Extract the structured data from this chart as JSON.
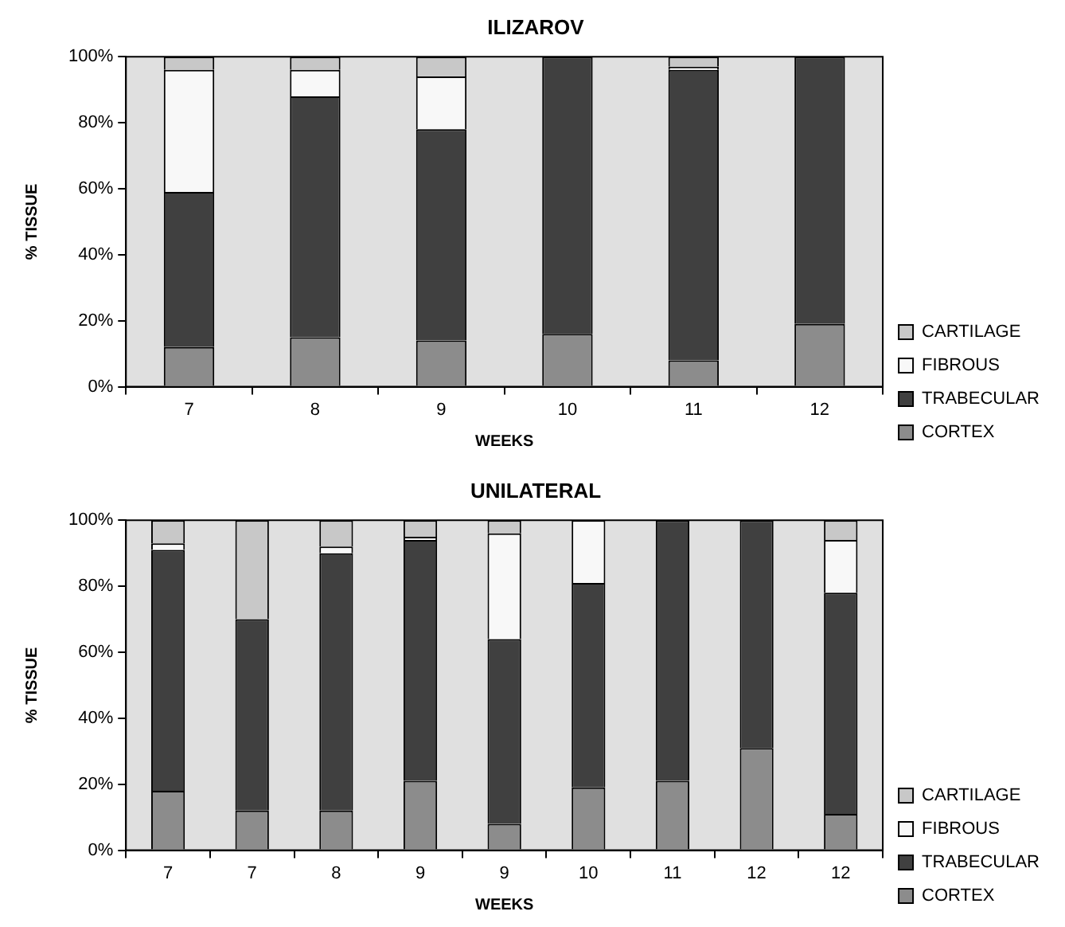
{
  "chart_data": [
    {
      "type": "bar",
      "stacked": true,
      "title": "ILIZAROV",
      "xlabel": "WEEKS",
      "ylabel": "% TISSUE",
      "categories": [
        "7",
        "8",
        "9",
        "10",
        "11",
        "12"
      ],
      "legend": "right",
      "grid": false,
      "ylim": [
        0,
        100
      ],
      "yticks": [
        {
          "value": 0,
          "label": "0%"
        },
        {
          "value": 20,
          "label": "20%"
        },
        {
          "value": 40,
          "label": "40%"
        },
        {
          "value": 60,
          "label": "60%"
        },
        {
          "value": 80,
          "label": "80%"
        },
        {
          "value": 100,
          "label": "100%"
        }
      ],
      "series": [
        {
          "name": "CORTEX",
          "color": "#8c8c8c",
          "values": [
            12,
            15,
            14,
            16,
            8,
            19
          ]
        },
        {
          "name": "TRABECULAR",
          "color": "#404040",
          "values": [
            47,
            73,
            64,
            84,
            88,
            81
          ]
        },
        {
          "name": "FIBROUS",
          "color": "#f8f8f8",
          "values": [
            37,
            8,
            16,
            0,
            1,
            0
          ]
        },
        {
          "name": "CARTILAGE",
          "color": "#c8c8c8",
          "values": [
            4,
            4,
            6,
            0,
            3,
            0
          ]
        }
      ]
    },
    {
      "type": "bar",
      "stacked": true,
      "title": "UNILATERAL",
      "xlabel": "WEEKS",
      "ylabel": "% TISSUE",
      "categories": [
        "7",
        "7",
        "8",
        "9",
        "9",
        "10",
        "11",
        "12",
        "12"
      ],
      "legend": "right",
      "grid": false,
      "ylim": [
        0,
        100
      ],
      "yticks": [
        {
          "value": 0,
          "label": "0%"
        },
        {
          "value": 20,
          "label": "20%"
        },
        {
          "value": 40,
          "label": "40%"
        },
        {
          "value": 60,
          "label": "60%"
        },
        {
          "value": 80,
          "label": "80%"
        },
        {
          "value": 100,
          "label": "100%"
        }
      ],
      "series": [
        {
          "name": "CORTEX",
          "color": "#8c8c8c",
          "values": [
            18,
            12,
            12,
            21,
            8,
            19,
            21,
            31,
            11
          ]
        },
        {
          "name": "TRABECULAR",
          "color": "#404040",
          "values": [
            73,
            58,
            78,
            73,
            56,
            62,
            79,
            69,
            67
          ]
        },
        {
          "name": "FIBROUS",
          "color": "#f8f8f8",
          "values": [
            2,
            0,
            2,
            1,
            32,
            19,
            0,
            0,
            16
          ]
        },
        {
          "name": "CARTILAGE",
          "color": "#c8c8c8",
          "values": [
            7,
            30,
            8,
            5,
            4,
            0,
            0,
            0,
            6
          ]
        }
      ]
    }
  ]
}
